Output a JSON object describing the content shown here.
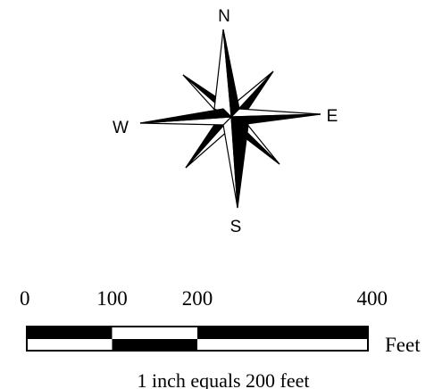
{
  "compass": {
    "north": "N",
    "east": "E",
    "south": "S",
    "west": "W"
  },
  "scale_bar": {
    "ticks": [
      "0",
      "100",
      "200",
      "400"
    ],
    "tick_values": [
      0,
      100,
      200,
      400
    ],
    "unit": "Feet",
    "ratio_text": "1 inch equals 200 feet",
    "colors": {
      "fill": "#000000",
      "background": "#ffffff"
    }
  }
}
